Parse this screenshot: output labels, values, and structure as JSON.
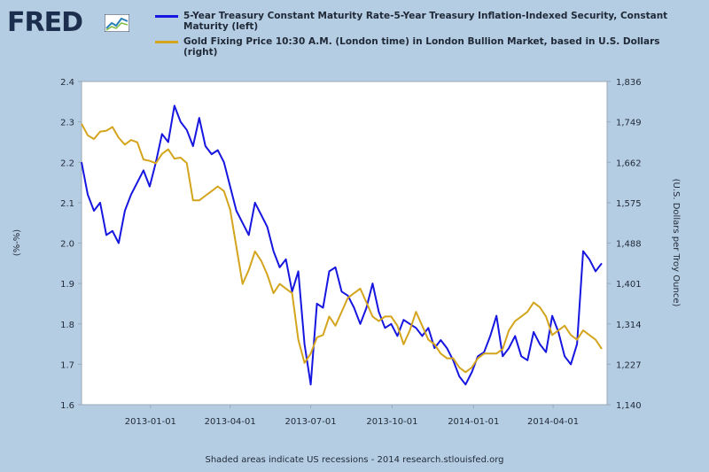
{
  "brand": {
    "logo_text": "FRED",
    "logo_icon": "line-chart-icon"
  },
  "footer": "Shaded areas indicate US recessions - 2014 research.stlouisfed.org",
  "chart_data": {
    "type": "line",
    "title": "",
    "xlabel": "",
    "ylabel": "(%-%)",
    "y2label": "(U.S. Dollars per Troy Ounce)",
    "x_range": [
      "2012-10-15",
      "2014-06-01"
    ],
    "x_ticks": [
      "2013-01-01",
      "2013-04-01",
      "2013-07-01",
      "2013-10-01",
      "2014-01-01",
      "2014-04-01"
    ],
    "ylim": [
      1.6,
      2.4
    ],
    "y_ticks": [
      "1.6",
      "1.7",
      "1.8",
      "1.9",
      "2.0",
      "2.1",
      "2.2",
      "2.3",
      "2.4"
    ],
    "y2lim": [
      1140,
      1836
    ],
    "y2_ticks": [
      "1,140",
      "1,227",
      "1,314",
      "1,401",
      "1,488",
      "1,575",
      "1,662",
      "1,749",
      "1,836"
    ],
    "grid": false,
    "legend_placement": "top",
    "series": [
      {
        "name": "5-Year Treasury Constant Maturity Rate-5-Year Treasury Inflation-Indexed Security, Constant Maturity (left)",
        "axis": "left",
        "color": "#1616e0",
        "x": [
          "2012-10-15",
          "2012-10-22",
          "2012-10-29",
          "2012-11-05",
          "2012-11-12",
          "2012-11-19",
          "2012-11-26",
          "2012-12-03",
          "2012-12-10",
          "2012-12-17",
          "2012-12-24",
          "2012-12-31",
          "2013-01-07",
          "2013-01-14",
          "2013-01-21",
          "2013-01-28",
          "2013-02-04",
          "2013-02-11",
          "2013-02-18",
          "2013-02-25",
          "2013-03-04",
          "2013-03-11",
          "2013-03-18",
          "2013-03-25",
          "2013-04-01",
          "2013-04-08",
          "2013-04-15",
          "2013-04-22",
          "2013-04-29",
          "2013-05-06",
          "2013-05-13",
          "2013-05-20",
          "2013-05-27",
          "2013-06-03",
          "2013-06-10",
          "2013-06-17",
          "2013-06-24",
          "2013-07-01",
          "2013-07-08",
          "2013-07-15",
          "2013-07-22",
          "2013-07-29",
          "2013-08-05",
          "2013-08-12",
          "2013-08-19",
          "2013-08-26",
          "2013-09-02",
          "2013-09-09",
          "2013-09-16",
          "2013-09-23",
          "2013-09-30",
          "2013-10-07",
          "2013-10-14",
          "2013-10-21",
          "2013-10-28",
          "2013-11-04",
          "2013-11-11",
          "2013-11-18",
          "2013-11-25",
          "2013-12-02",
          "2013-12-09",
          "2013-12-16",
          "2013-12-23",
          "2013-12-30",
          "2014-01-06",
          "2014-01-13",
          "2014-01-20",
          "2014-01-27",
          "2014-02-03",
          "2014-02-10",
          "2014-02-17",
          "2014-02-24",
          "2014-03-03",
          "2014-03-10",
          "2014-03-17",
          "2014-03-24",
          "2014-03-31",
          "2014-04-07",
          "2014-04-14",
          "2014-04-21",
          "2014-04-28",
          "2014-05-05",
          "2014-05-12",
          "2014-05-19",
          "2014-05-26"
        ],
        "values": [
          2.2,
          2.12,
          2.08,
          2.1,
          2.02,
          2.03,
          2.0,
          2.08,
          2.12,
          2.15,
          2.18,
          2.14,
          2.2,
          2.27,
          2.25,
          2.34,
          2.3,
          2.28,
          2.24,
          2.31,
          2.24,
          2.22,
          2.23,
          2.2,
          2.14,
          2.08,
          2.05,
          2.02,
          2.1,
          2.07,
          2.04,
          1.98,
          1.94,
          1.96,
          1.88,
          1.93,
          1.75,
          1.65,
          1.85,
          1.84,
          1.93,
          1.94,
          1.88,
          1.87,
          1.84,
          1.8,
          1.84,
          1.9,
          1.83,
          1.79,
          1.8,
          1.77,
          1.81,
          1.8,
          1.79,
          1.77,
          1.79,
          1.74,
          1.76,
          1.74,
          1.71,
          1.67,
          1.65,
          1.68,
          1.72,
          1.73,
          1.77,
          1.82,
          1.72,
          1.74,
          1.77,
          1.72,
          1.71,
          1.78,
          1.75,
          1.73,
          1.82,
          1.78,
          1.72,
          1.7,
          1.75,
          1.98,
          1.96,
          1.93,
          1.95
        ]
      },
      {
        "name": "Gold Fixing Price 10:30 A.M. (London time) in London Bullion Market, based in U.S. Dollars (right)",
        "axis": "right",
        "color": "#d4a51c",
        "x": [
          "2012-10-15",
          "2012-10-22",
          "2012-10-29",
          "2012-11-05",
          "2012-11-12",
          "2012-11-19",
          "2012-11-26",
          "2012-12-03",
          "2012-12-10",
          "2012-12-17",
          "2012-12-24",
          "2012-12-31",
          "2013-01-07",
          "2013-01-14",
          "2013-01-21",
          "2013-01-28",
          "2013-02-04",
          "2013-02-11",
          "2013-02-18",
          "2013-02-25",
          "2013-03-04",
          "2013-03-11",
          "2013-03-18",
          "2013-03-25",
          "2013-04-01",
          "2013-04-08",
          "2013-04-15",
          "2013-04-22",
          "2013-04-29",
          "2013-05-06",
          "2013-05-13",
          "2013-05-20",
          "2013-05-27",
          "2013-06-03",
          "2013-06-10",
          "2013-06-17",
          "2013-06-24",
          "2013-07-01",
          "2013-07-08",
          "2013-07-15",
          "2013-07-22",
          "2013-07-29",
          "2013-08-05",
          "2013-08-12",
          "2013-08-19",
          "2013-08-26",
          "2013-09-02",
          "2013-09-09",
          "2013-09-16",
          "2013-09-23",
          "2013-09-30",
          "2013-10-07",
          "2013-10-14",
          "2013-10-21",
          "2013-10-28",
          "2013-11-04",
          "2013-11-11",
          "2013-11-18",
          "2013-11-25",
          "2013-12-02",
          "2013-12-09",
          "2013-12-16",
          "2013-12-23",
          "2013-12-30",
          "2014-01-06",
          "2014-01-13",
          "2014-01-20",
          "2014-01-27",
          "2014-02-03",
          "2014-02-10",
          "2014-02-17",
          "2014-02-24",
          "2014-03-03",
          "2014-03-10",
          "2014-03-17",
          "2014-03-24",
          "2014-03-31",
          "2014-04-07",
          "2014-04-14",
          "2014-04-21",
          "2014-04-28",
          "2014-05-05",
          "2014-05-12",
          "2014-05-19",
          "2014-05-26"
        ],
        "values": [
          1745,
          1720,
          1712,
          1728,
          1730,
          1738,
          1715,
          1700,
          1710,
          1705,
          1668,
          1665,
          1660,
          1680,
          1690,
          1670,
          1672,
          1660,
          1580,
          1580,
          1590,
          1600,
          1610,
          1600,
          1560,
          1480,
          1400,
          1430,
          1470,
          1450,
          1420,
          1380,
          1400,
          1390,
          1380,
          1280,
          1230,
          1250,
          1285,
          1290,
          1330,
          1310,
          1340,
          1370,
          1380,
          1390,
          1360,
          1330,
          1320,
          1330,
          1330,
          1310,
          1270,
          1300,
          1340,
          1310,
          1280,
          1270,
          1250,
          1240,
          1240,
          1220,
          1210,
          1220,
          1240,
          1250,
          1250,
          1250,
          1260,
          1300,
          1320,
          1330,
          1340,
          1360,
          1350,
          1330,
          1290,
          1300,
          1310,
          1290,
          1280,
          1300,
          1290,
          1280,
          1260
        ]
      }
    ]
  }
}
